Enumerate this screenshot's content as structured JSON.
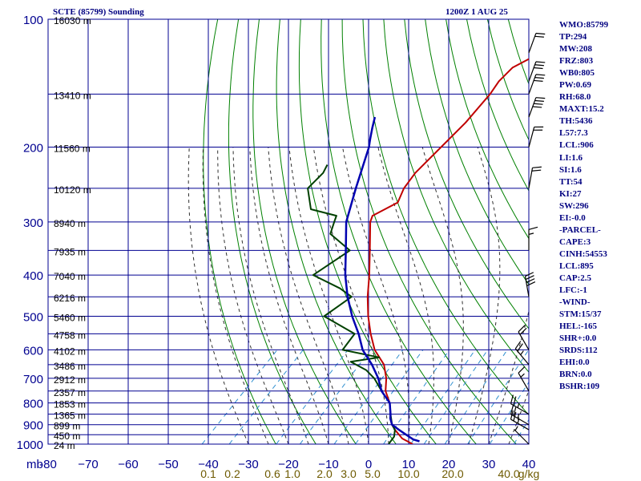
{
  "header": {
    "station": "SCTE (85799) Sounding",
    "time": "1200Z  1 AUG 25"
  },
  "stats": [
    "WMO:85799",
    "TP:294",
    "MW:208",
    "FRZ:803",
    "WB0:805",
    "PW:0.69",
    "RH:68.0",
    "MAXT:15.2",
    "TH:5436",
    "L57:7.3",
    "LCL:906",
    "LI:1.6",
    "SI:1.6",
    "TT:54",
    "KI:27",
    "SW:296",
    "EI:-0.0",
    "-PARCEL-",
    "CAPE:3",
    "CINH:54553",
    "LCL:895",
    "CAP:2.5",
    "LFC:-1",
    "-WIND-",
    "STM:15/37",
    "HEL:-165",
    "SHR+:0.0",
    "SRDS:112",
    "EHI:0.0",
    "BRN:0.0",
    "BSHR:109"
  ],
  "colors": {
    "grid": "#000090",
    "temperature": "#c00000",
    "dewpoint": "#004000",
    "parcel": "#0000b0",
    "dry_adiabat": "#008000",
    "moist_adiabat": "#303030",
    "mixing_ratio": "#3090d0",
    "mixing_label": "#6e5a00",
    "text": "#000080"
  },
  "chart_data": {
    "type": "line",
    "title": "SCTE (85799) Sounding",
    "subtitle": "1200Z  1 AUG 25",
    "xlabel": "",
    "ylabel": "mb",
    "x_unit": "°C",
    "y_scale": "log",
    "xlim": [
      -80,
      40
    ],
    "ylim": [
      1000,
      100
    ],
    "grid": true,
    "pressure_levels": [
      100,
      150,
      200,
      250,
      300,
      350,
      400,
      450,
      500,
      550,
      600,
      650,
      700,
      750,
      800,
      850,
      900,
      950,
      1000
    ],
    "pressure_tick_labels": [
      {
        "p": 100,
        "label": "100"
      },
      {
        "p": 200,
        "label": "200"
      },
      {
        "p": 300,
        "label": "300"
      },
      {
        "p": 400,
        "label": "400"
      },
      {
        "p": 500,
        "label": "500"
      },
      {
        "p": 600,
        "label": "600"
      },
      {
        "p": 700,
        "label": "700"
      },
      {
        "p": 800,
        "label": "800"
      },
      {
        "p": 900,
        "label": "900"
      },
      {
        "p": 1000,
        "label": "1000"
      }
    ],
    "temperature_ticks": [
      {
        "t": -80,
        "label": "-80"
      },
      {
        "t": -70,
        "label": "−70"
      },
      {
        "t": -60,
        "label": "−60"
      },
      {
        "t": -50,
        "label": "−50"
      },
      {
        "t": -40,
        "label": "−40"
      },
      {
        "t": -30,
        "label": "−30"
      },
      {
        "t": -20,
        "label": "−20"
      },
      {
        "t": -10,
        "label": "−10"
      },
      {
        "t": 0,
        "label": "0"
      },
      {
        "t": 10,
        "label": "10"
      },
      {
        "t": 20,
        "label": "20"
      },
      {
        "t": 30,
        "label": "30"
      },
      {
        "t": 40,
        "label": "40"
      }
    ],
    "y_axis_unit_label": "mb",
    "height_labels": [
      {
        "p": 100,
        "label": "16030 m"
      },
      {
        "p": 150,
        "label": "13410 m"
      },
      {
        "p": 200,
        "label": "11560 m"
      },
      {
        "p": 250,
        "label": "10120 m"
      },
      {
        "p": 300,
        "label": "8940 m"
      },
      {
        "p": 350,
        "label": "7935 m"
      },
      {
        "p": 400,
        "label": "7040 m"
      },
      {
        "p": 450,
        "label": "6216 m"
      },
      {
        "p": 500,
        "label": "5460 m"
      },
      {
        "p": 550,
        "label": "4758 m"
      },
      {
        "p": 600,
        "label": "4102 m"
      },
      {
        "p": 650,
        "label": "3486 m"
      },
      {
        "p": 700,
        "label": "2912 m"
      },
      {
        "p": 750,
        "label": "2357 m"
      },
      {
        "p": 800,
        "label": "1853 m"
      },
      {
        "p": 850,
        "label": "1365 m"
      },
      {
        "p": 900,
        "label": "899 m"
      },
      {
        "p": 950,
        "label": "450 m"
      },
      {
        "p": 1000,
        "label": "24 m"
      }
    ],
    "mixing_ratio_labels": [
      {
        "t": -40,
        "label": "0.1"
      },
      {
        "t": -34,
        "label": "0.2"
      },
      {
        "t": -24,
        "label": "0.6"
      },
      {
        "t": -19,
        "label": "1.0"
      },
      {
        "t": -11,
        "label": "2.0"
      },
      {
        "t": -5,
        "label": "3.0"
      },
      {
        "t": 1,
        "label": "5.0"
      },
      {
        "t": 10,
        "label": "10.0"
      },
      {
        "t": 21,
        "label": "20.0"
      },
      {
        "t": 35,
        "label": "40.0"
      },
      {
        "t": 40,
        "label": "g/kg"
      }
    ],
    "series": [
      {
        "key": "temperature",
        "points": [
          [
            1000,
            11
          ],
          [
            970,
            7
          ],
          [
            925,
            3
          ],
          [
            900,
            1
          ],
          [
            870,
            -1
          ],
          [
            850,
            -2
          ],
          [
            800,
            -5
          ],
          [
            750,
            -9
          ],
          [
            700,
            -12
          ],
          [
            650,
            -16
          ],
          [
            600,
            -22
          ],
          [
            550,
            -27
          ],
          [
            500,
            -32
          ],
          [
            450,
            -37
          ],
          [
            400,
            -42
          ],
          [
            350,
            -48
          ],
          [
            300,
            -55
          ],
          [
            290,
            -56
          ],
          [
            270,
            -53
          ],
          [
            250,
            -55
          ],
          [
            230,
            -56
          ],
          [
            200,
            -56
          ],
          [
            175,
            -56
          ],
          [
            150,
            -57
          ],
          [
            140,
            -58
          ],
          [
            130,
            -58
          ],
          [
            115,
            -53
          ],
          [
            100,
            -51
          ]
        ]
      },
      {
        "key": "dewpoint",
        "points": [
          [
            1000,
            5
          ],
          [
            960,
            4.5
          ],
          [
            925,
            3
          ],
          [
            900,
            1
          ],
          [
            850,
            -2
          ],
          [
            800,
            -5
          ],
          [
            750,
            -10
          ],
          [
            700,
            -15
          ],
          [
            670,
            -19
          ],
          [
            640,
            -25
          ],
          [
            625,
            -19
          ],
          [
            600,
            -30
          ],
          [
            550,
            -31
          ],
          [
            500,
            -43
          ],
          [
            450,
            -41
          ],
          [
            430,
            -46
          ],
          [
            400,
            -56
          ],
          [
            350,
            -53
          ],
          [
            320,
            -62
          ],
          [
            300,
            -64
          ],
          [
            290,
            -65
          ],
          [
            280,
            -73
          ],
          [
            250,
            -79
          ],
          [
            230,
            -79
          ],
          [
            220,
            -80
          ]
        ]
      },
      {
        "key": "parcel",
        "points": [
          [
            985,
            12
          ],
          [
            975,
            10
          ],
          [
            950,
            7
          ],
          [
            925,
            4
          ],
          [
            900,
            1
          ],
          [
            870,
            -1
          ],
          [
            850,
            -2
          ],
          [
            800,
            -5
          ],
          [
            750,
            -10
          ],
          [
            700,
            -14
          ],
          [
            650,
            -19
          ],
          [
            600,
            -25
          ],
          [
            550,
            -30
          ],
          [
            500,
            -36
          ],
          [
            450,
            -42
          ],
          [
            400,
            -48
          ],
          [
            350,
            -54
          ],
          [
            300,
            -61
          ],
          [
            250,
            -67
          ],
          [
            200,
            -74
          ],
          [
            195,
            -75
          ],
          [
            190,
            -76
          ],
          [
            180,
            -78
          ],
          [
            170,
            -80
          ]
        ]
      }
    ],
    "wind_barbs": [
      {
        "p": 1000,
        "direction": 315,
        "speed": 5
      },
      {
        "p": 925,
        "direction": 300,
        "speed": 25
      },
      {
        "p": 900,
        "direction": 300,
        "speed": 25
      },
      {
        "p": 850,
        "direction": 300,
        "speed": 25
      },
      {
        "p": 750,
        "direction": 330,
        "speed": 15
      },
      {
        "p": 650,
        "direction": 320,
        "speed": 25
      },
      {
        "p": 600,
        "direction": 330,
        "speed": 20
      },
      {
        "p": 450,
        "direction": 350,
        "speed": 40
      },
      {
        "p": 350,
        "direction": 360,
        "speed": 15
      },
      {
        "p": 250,
        "direction": 10,
        "speed": 20
      },
      {
        "p": 200,
        "direction": 15,
        "speed": 20
      },
      {
        "p": 170,
        "direction": 20,
        "speed": 40
      },
      {
        "p": 150,
        "direction": 20,
        "speed": 30
      },
      {
        "p": 140,
        "direction": 20,
        "speed": 30
      },
      {
        "p": 120,
        "direction": 20,
        "speed": 20
      }
    ]
  }
}
